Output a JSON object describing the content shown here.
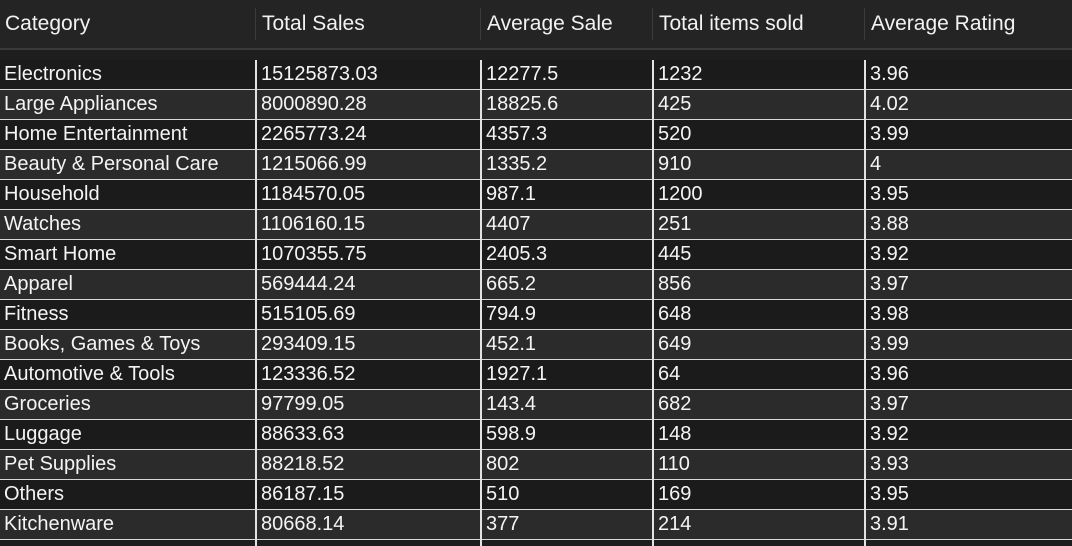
{
  "table": {
    "columns": [
      "Category",
      "Total Sales",
      "Average Sale",
      "Total items sold",
      "Average Rating"
    ],
    "rows": [
      [
        "Electronics",
        "15125873.03",
        "12277.5",
        "1232",
        "3.96"
      ],
      [
        "Large Appliances",
        "8000890.28",
        "18825.6",
        "425",
        "4.02"
      ],
      [
        "Home Entertainment",
        "2265773.24",
        "4357.3",
        "520",
        "3.99"
      ],
      [
        "Beauty & Personal Care",
        "1215066.99",
        "1335.2",
        "910",
        "4"
      ],
      [
        "Household",
        "1184570.05",
        "987.1",
        "1200",
        "3.95"
      ],
      [
        "Watches",
        "1106160.15",
        "4407",
        "251",
        "3.88"
      ],
      [
        "Smart Home",
        "1070355.75",
        "2405.3",
        "445",
        "3.92"
      ],
      [
        "Apparel",
        "569444.24",
        "665.2",
        "856",
        "3.97"
      ],
      [
        "Fitness",
        "515105.69",
        "794.9",
        "648",
        "3.98"
      ],
      [
        "Books, Games & Toys",
        "293409.15",
        "452.1",
        "649",
        "3.99"
      ],
      [
        "Automotive & Tools",
        "123336.52",
        "1927.1",
        "64",
        "3.96"
      ],
      [
        "Groceries",
        "97799.05",
        "143.4",
        "682",
        "3.97"
      ],
      [
        "Luggage",
        "88633.63",
        "598.9",
        "148",
        "3.92"
      ],
      [
        "Pet Supplies",
        "88218.52",
        "802",
        "110",
        "3.93"
      ],
      [
        "Others",
        "86187.15",
        "510",
        "169",
        "3.95"
      ],
      [
        "Kitchenware",
        "80668.14",
        "377",
        "214",
        "3.91"
      ]
    ]
  },
  "colors": {
    "background": "#1e1e1e",
    "header_background": "#242424",
    "row_dark": "#1b1b1b",
    "row_light": "#2b2b2b",
    "grid_line": "#d9d9d9",
    "text": "#f4f4f4"
  }
}
